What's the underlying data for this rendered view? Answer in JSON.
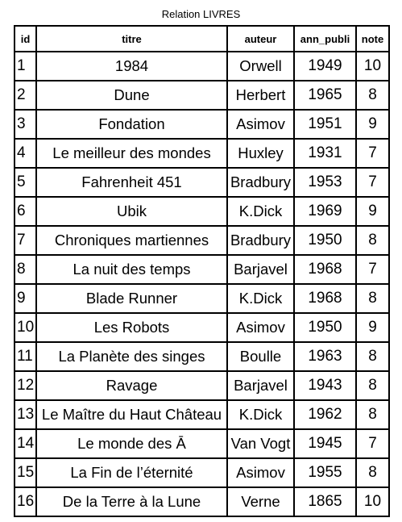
{
  "caption": "Relation LIVRES",
  "columns": [
    "id",
    "titre",
    "auteur",
    "ann_publi",
    "note"
  ],
  "rows": [
    [
      "1",
      "1984",
      "Orwell",
      "1949",
      "10"
    ],
    [
      "2",
      "Dune",
      "Herbert",
      "1965",
      "8"
    ],
    [
      "3",
      "Fondation",
      "Asimov",
      "1951",
      "9"
    ],
    [
      "4",
      "Le meilleur des mondes",
      "Huxley",
      "1931",
      "7"
    ],
    [
      "5",
      "Fahrenheit 451",
      "Bradbury",
      "1953",
      "7"
    ],
    [
      "6",
      "Ubik",
      "K.Dick",
      "1969",
      "9"
    ],
    [
      "7",
      "Chroniques martiennes",
      "Bradbury",
      "1950",
      "8"
    ],
    [
      "8",
      "La nuit des temps",
      "Barjavel",
      "1968",
      "7"
    ],
    [
      "9",
      "Blade Runner",
      "K.Dick",
      "1968",
      "8"
    ],
    [
      "10",
      "Les Robots",
      "Asimov",
      "1950",
      "9"
    ],
    [
      "11",
      "La Planète des singes",
      "Boulle",
      "1963",
      "8"
    ],
    [
      "12",
      "Ravage",
      "Barjavel",
      "1943",
      "8"
    ],
    [
      "13",
      "Le Maître du Haut Château",
      "K.Dick",
      "1962",
      "8"
    ],
    [
      "14",
      "Le monde des Ā",
      "Van Vogt",
      "1945",
      "7"
    ],
    [
      "15",
      "La Fin de l’éternité",
      "Asimov",
      "1955",
      "8"
    ],
    [
      "16",
      "De la Terre à la Lune",
      "Verne",
      "1865",
      "10"
    ]
  ]
}
